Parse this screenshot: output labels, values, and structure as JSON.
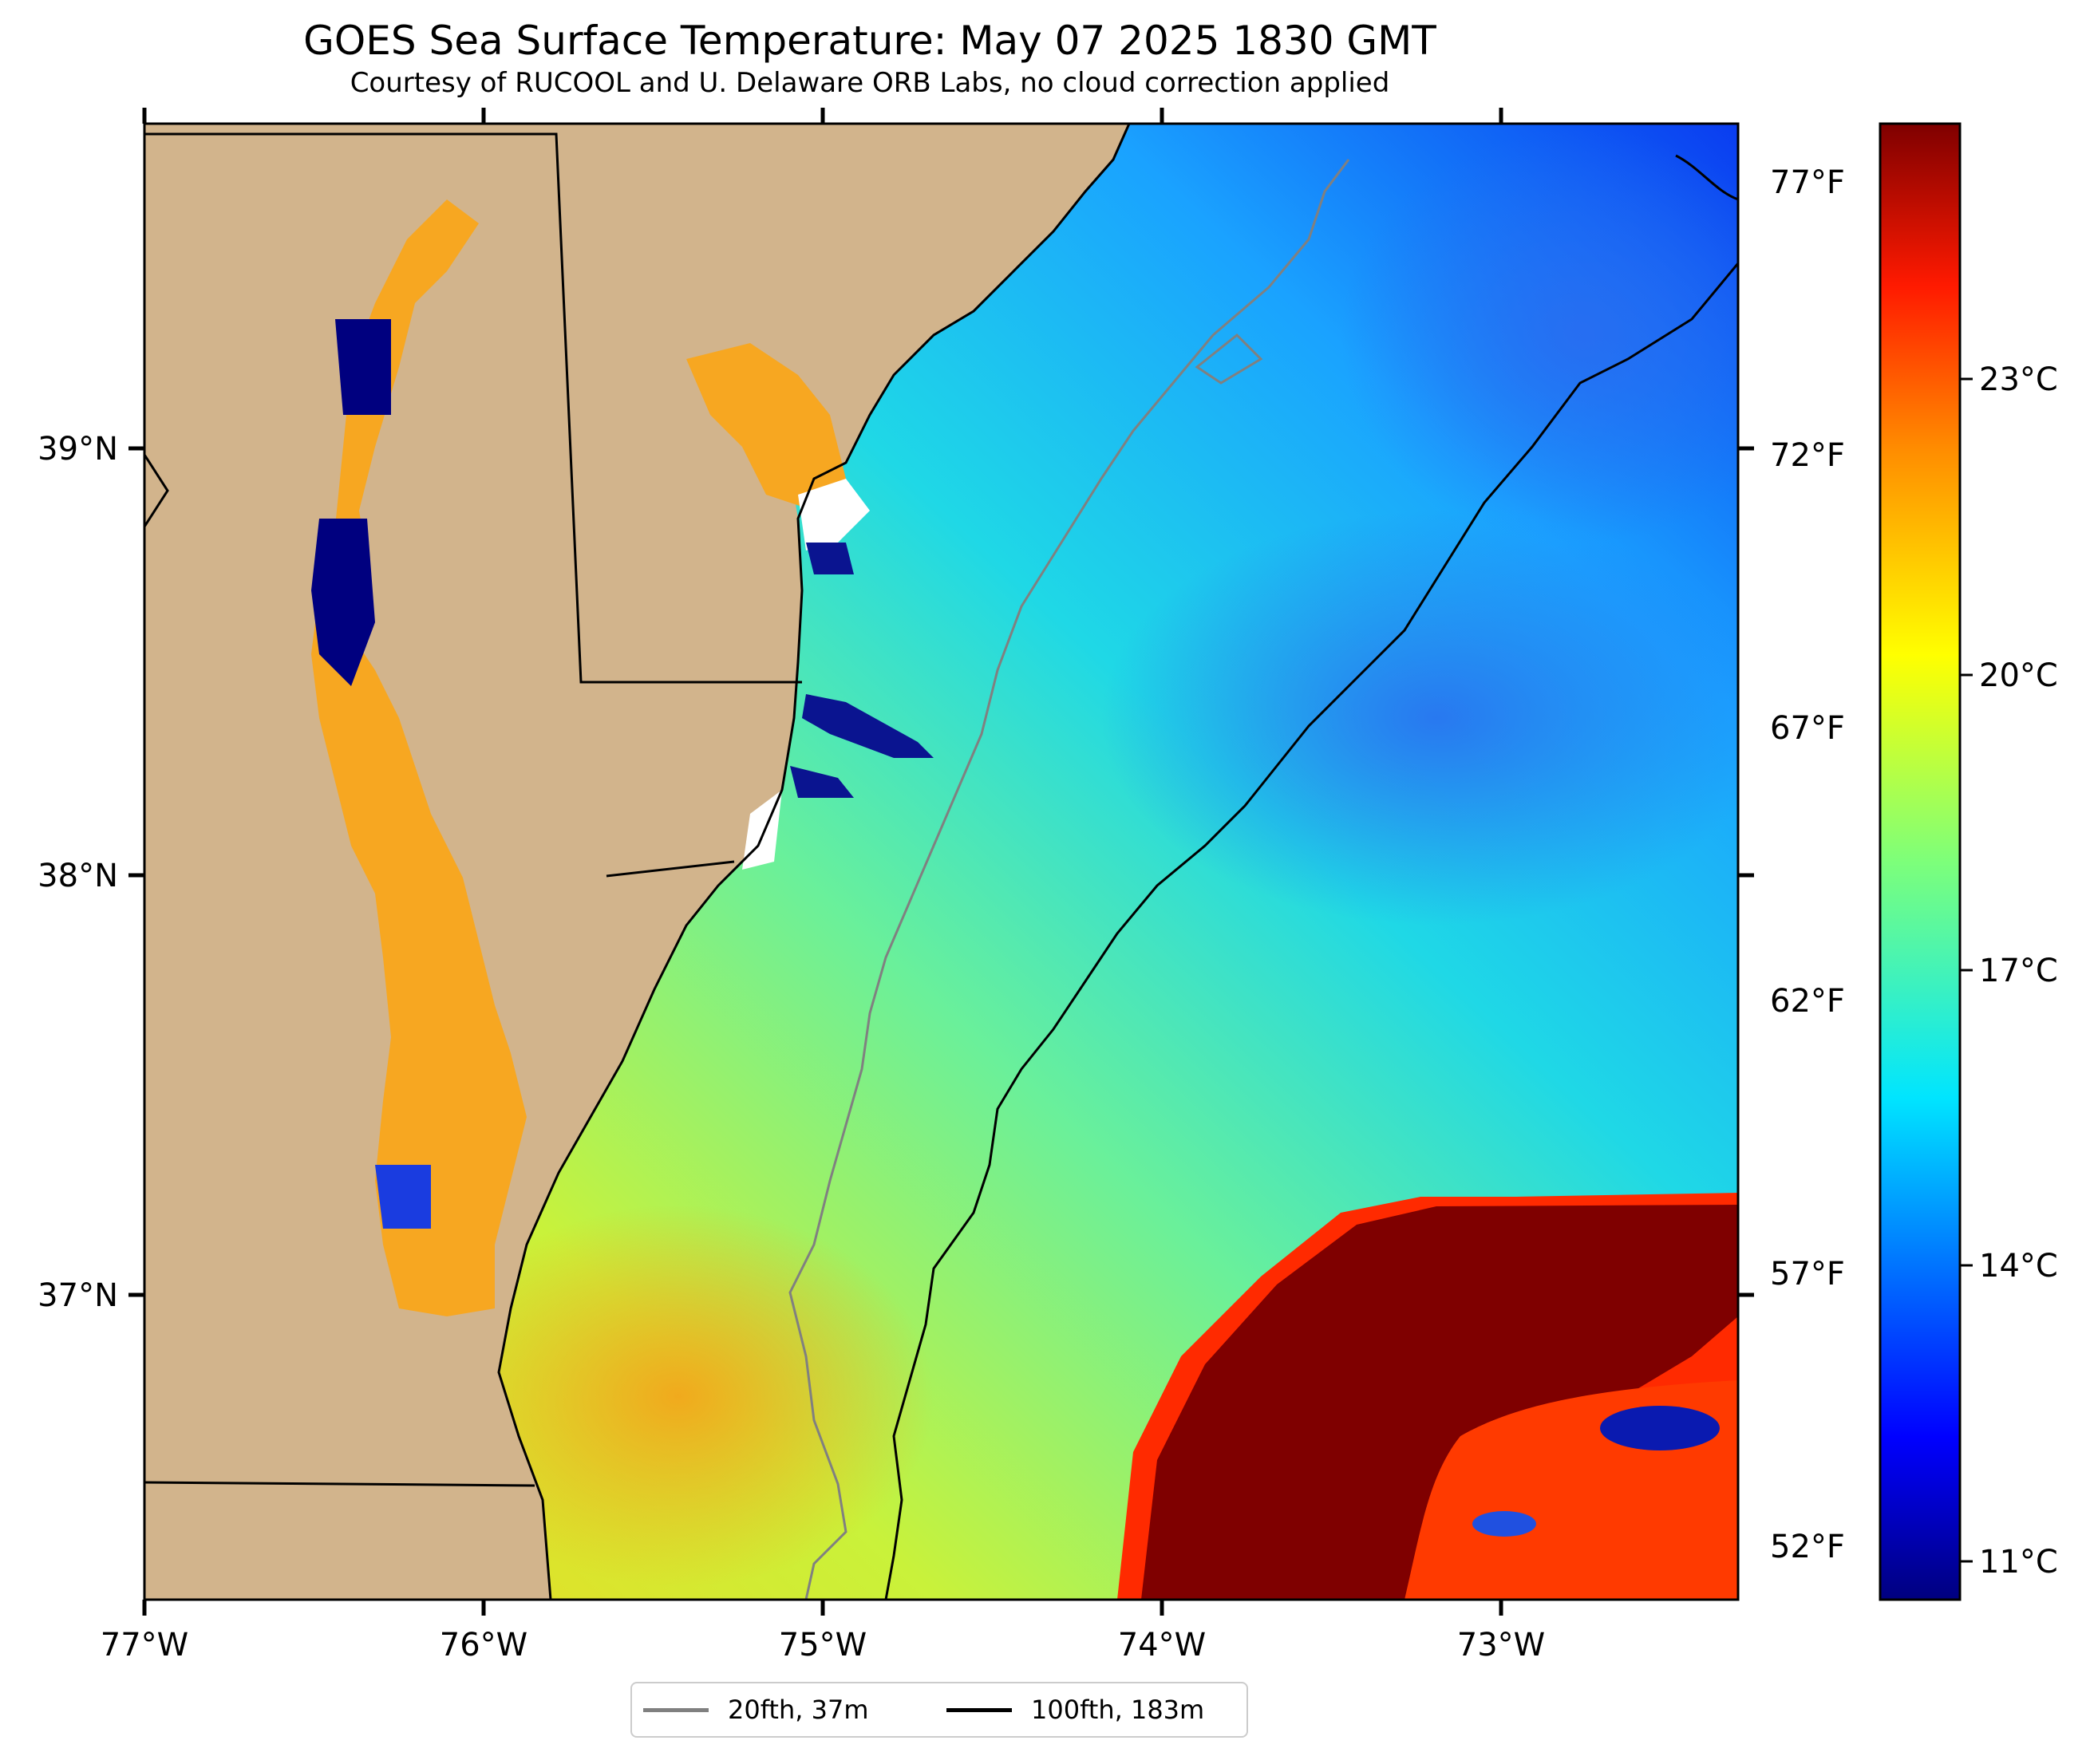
{
  "map": {
    "title": "GOES Sea Surface Temperature: May 07 2025 1830 GMT",
    "subtitle": "Courtesy of RUCOOL and U. Delaware ORB Labs, no cloud correction applied",
    "lon_ticks": [
      "77°W",
      "76°W",
      "75°W",
      "74°W",
      "73°W"
    ],
    "lat_ticks": [
      "39°N",
      "38°N",
      "37°N"
    ],
    "fahrenheit_ticks": [
      "77°F",
      "72°F",
      "67°F",
      "62°F",
      "57°F",
      "52°F"
    ],
    "lon_range": [
      -77.0,
      -72.3
    ],
    "lat_range": [
      36.3,
      39.8
    ],
    "colors": {
      "land": "#d2b48c",
      "coast": "#000000",
      "contour_20fth": "#808080",
      "contour_100fth": "#000000"
    }
  },
  "colorbar": {
    "ticks": [
      "23°C",
      "20°C",
      "17°C",
      "14°C",
      "11°C"
    ],
    "range_c": [
      10.6,
      25.5
    ],
    "colormap": "jet"
  },
  "legend": {
    "items": [
      {
        "label": "20fth, 37m",
        "color": "#808080"
      },
      {
        "label": "100fth, 183m",
        "color": "#000000"
      }
    ]
  }
}
